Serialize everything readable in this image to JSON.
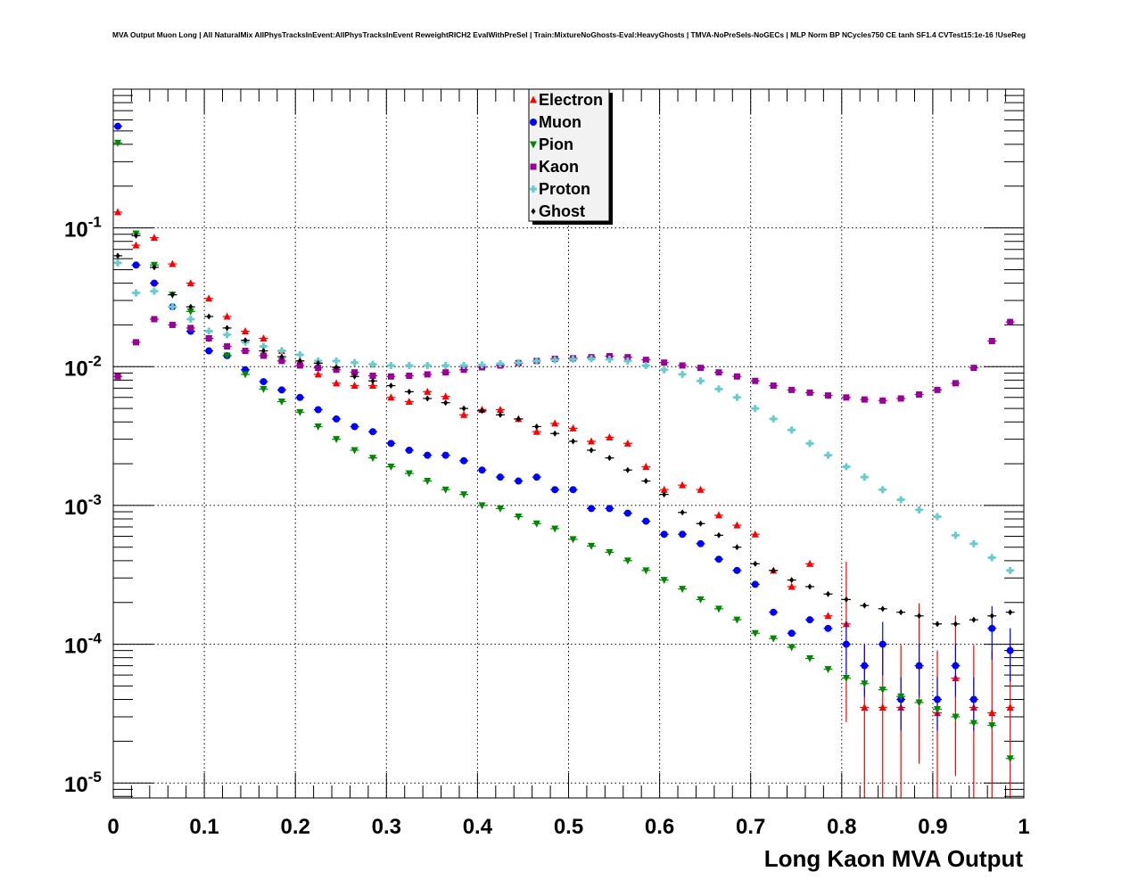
{
  "chart_data": {
    "type": "scatter",
    "title": "MVA Output Muon Long | All NaturalMix AllPhysTracksInEvent:AllPhysTracksInEvent ReweightRICH2 EvalWithPreSel | Train:MixtureNoGhosts-Eval:HeavyGhosts | TMVA-NoPreSels-NoGECs | MLP Norm BP NCycles750 CE tanh SF1.4 CVTest15:1e-16 !UseReg",
    "xlabel": "Long Kaon MVA Output",
    "ylabel": "",
    "xlim": [
      0,
      1
    ],
    "ylim": [
      7.8e-06,
      1.0
    ],
    "yscale": "log",
    "grid": true,
    "legend_position": "top-center",
    "xtick_labels": [
      "0",
      "0.1",
      "0.2",
      "0.3",
      "0.4",
      "0.5",
      "0.6",
      "0.7",
      "0.8",
      "0.9",
      "1"
    ],
    "ytick_labels": [
      {
        "base": "10",
        "exp": "-1",
        "value": 0.1
      },
      {
        "base": "10",
        "exp": "-2",
        "value": 0.01
      },
      {
        "base": "10",
        "exp": "-3",
        "value": 0.001
      },
      {
        "base": "10",
        "exp": "-4",
        "value": 0.0001
      },
      {
        "base": "10",
        "exp": "-5",
        "value": 1e-05
      }
    ],
    "x": [
      0.005,
      0.025,
      0.045,
      0.065,
      0.085,
      0.105,
      0.125,
      0.145,
      0.165,
      0.185,
      0.205,
      0.225,
      0.245,
      0.265,
      0.285,
      0.305,
      0.325,
      0.345,
      0.365,
      0.385,
      0.405,
      0.425,
      0.445,
      0.465,
      0.485,
      0.505,
      0.525,
      0.545,
      0.565,
      0.585,
      0.605,
      0.625,
      0.645,
      0.665,
      0.685,
      0.705,
      0.725,
      0.745,
      0.765,
      0.785,
      0.805,
      0.825,
      0.845,
      0.865,
      0.885,
      0.905,
      0.925,
      0.945,
      0.965,
      0.985
    ],
    "series": [
      {
        "name": "Electron",
        "color": "#ff0000",
        "marker": "triangle-up",
        "values": [
          0.13,
          0.075,
          0.085,
          0.055,
          0.04,
          0.031,
          0.023,
          0.018,
          0.016,
          0.013,
          0.011,
          0.0088,
          0.0076,
          0.0073,
          0.0073,
          0.006,
          0.0056,
          0.0066,
          0.0061,
          0.0045,
          0.0049,
          0.0049,
          0.0042,
          0.0034,
          0.0039,
          0.0036,
          0.0029,
          0.0031,
          0.0028,
          0.0019,
          0.0013,
          0.0014,
          0.0013,
          0.00085,
          0.00072,
          0.00062,
          0.00034,
          0.00026,
          0.00038,
          0.00016,
          0.00014,
          3.5e-05,
          3.5e-05,
          3.5e-05,
          7e-05,
          3.2e-05,
          5.7e-05,
          3.5e-05,
          3.2e-05,
          3.5e-05
        ]
      },
      {
        "name": "Muon",
        "color": "#0000ff",
        "marker": "circle",
        "values": [
          0.54,
          0.054,
          0.04,
          0.027,
          0.018,
          0.013,
          0.012,
          0.0095,
          0.0078,
          0.0068,
          0.006,
          0.0049,
          0.0042,
          0.0037,
          0.0034,
          0.0028,
          0.0025,
          0.0023,
          0.0023,
          0.0021,
          0.0018,
          0.0016,
          0.0015,
          0.0016,
          0.0013,
          0.0013,
          0.00095,
          0.00095,
          0.00088,
          0.00077,
          0.00062,
          0.00062,
          0.00053,
          0.00041,
          0.00034,
          0.00027,
          0.00017,
          0.00012,
          0.00015,
          0.00013,
          0.0001,
          7e-05,
          0.0001,
          4e-05,
          7e-05,
          4e-05,
          7e-05,
          4e-05,
          0.00013,
          9e-05
        ]
      },
      {
        "name": "Pion",
        "color": "#008800",
        "marker": "triangle-down",
        "values": [
          0.41,
          0.091,
          0.054,
          0.033,
          0.025,
          0.016,
          0.012,
          0.0088,
          0.0069,
          0.0056,
          0.0047,
          0.0037,
          0.003,
          0.0025,
          0.0022,
          0.0019,
          0.0017,
          0.0015,
          0.0013,
          0.0012,
          0.001,
          0.00095,
          0.00083,
          0.00074,
          0.00068,
          0.00057,
          0.00051,
          0.00046,
          0.0004,
          0.00034,
          0.00029,
          0.00025,
          0.00021,
          0.00018,
          0.00015,
          0.00012,
          0.00011,
          9.5e-05,
          7.9e-05,
          6.6e-05,
          5.7e-05,
          5.2e-05,
          4.7e-05,
          4.2e-05,
          3.8e-05,
          3.4e-05,
          3e-05,
          2.7e-05,
          2.6e-05,
          1.5e-05
        ]
      },
      {
        "name": "Kaon",
        "color": "#990099",
        "marker": "square",
        "values": [
          0.0085,
          0.015,
          0.022,
          0.02,
          0.019,
          0.016,
          0.014,
          0.013,
          0.012,
          0.011,
          0.0102,
          0.0098,
          0.0095,
          0.0091,
          0.0086,
          0.0085,
          0.0086,
          0.0088,
          0.0091,
          0.0095,
          0.0099,
          0.0102,
          0.0106,
          0.011,
          0.0114,
          0.0115,
          0.0117,
          0.0119,
          0.0117,
          0.0112,
          0.0107,
          0.0102,
          0.0098,
          0.0091,
          0.0085,
          0.0079,
          0.0073,
          0.0068,
          0.0065,
          0.0062,
          0.006,
          0.0058,
          0.0057,
          0.0059,
          0.0063,
          0.0068,
          0.0076,
          0.0098,
          0.0153,
          0.021
        ]
      },
      {
        "name": "Proton",
        "color": "#66cccc",
        "marker": "cross",
        "values": [
          0.056,
          0.034,
          0.035,
          0.027,
          0.022,
          0.018,
          0.017,
          0.015,
          0.014,
          0.013,
          0.0122,
          0.011,
          0.011,
          0.0107,
          0.0104,
          0.0102,
          0.0102,
          0.0102,
          0.0102,
          0.0102,
          0.0103,
          0.0105,
          0.0107,
          0.011,
          0.0112,
          0.0113,
          0.0114,
          0.0113,
          0.011,
          0.0102,
          0.0095,
          0.0088,
          0.0079,
          0.0069,
          0.006,
          0.005,
          0.0042,
          0.0035,
          0.0028,
          0.0023,
          0.0019,
          0.0016,
          0.0013,
          0.0011,
          0.00093,
          0.00083,
          0.00061,
          0.00053,
          0.00042,
          0.00034
        ]
      },
      {
        "name": "Ghost",
        "color": "#000000",
        "marker": "diamond",
        "values": [
          0.063,
          0.088,
          0.052,
          0.033,
          0.027,
          0.023,
          0.019,
          0.0155,
          0.013,
          0.0118,
          0.011,
          0.0106,
          0.0099,
          0.0085,
          0.0079,
          0.0073,
          0.0066,
          0.0059,
          0.0055,
          0.005,
          0.0048,
          0.0045,
          0.0042,
          0.0037,
          0.0033,
          0.0029,
          0.0025,
          0.0022,
          0.0018,
          0.0015,
          0.0012,
          0.00089,
          0.00074,
          0.00061,
          0.0005,
          0.00038,
          0.00034,
          0.00029,
          0.00026,
          0.00023,
          0.00021,
          0.00019,
          0.00018,
          0.00017,
          0.00016,
          0.00014,
          0.00014,
          0.00015,
          0.00016,
          0.00017
        ]
      }
    ]
  }
}
